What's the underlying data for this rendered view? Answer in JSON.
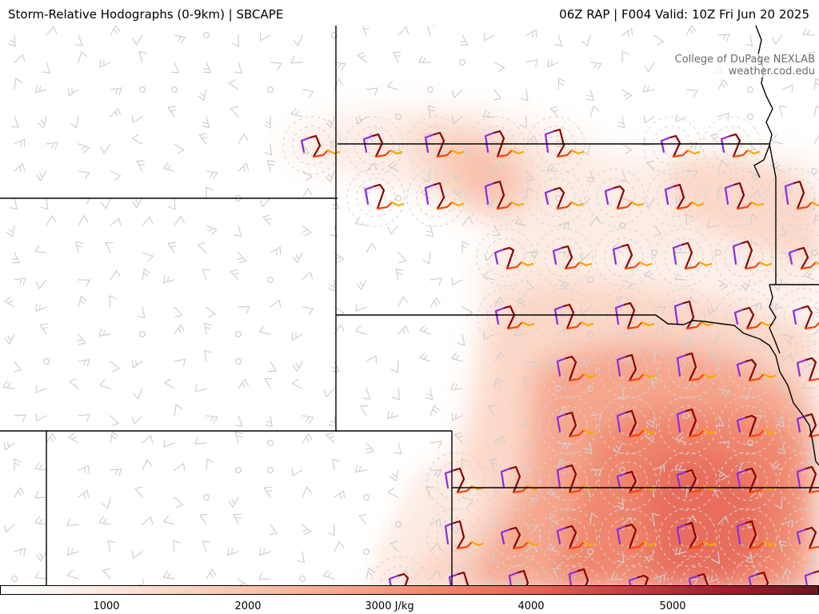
{
  "header": {
    "title": "Storm-Relative Hodographs (0-9km) | SBCAPE",
    "valid": "06Z RAP | F004 Valid: 10Z Fri Jun 20 2025"
  },
  "credit": {
    "line1": "College of DuPage NEXLAB",
    "line2": "weather.cod.edu"
  },
  "colorbar": {
    "unit": "J/kg",
    "min": 0,
    "max": 6000,
    "tick_labels": [
      "1000",
      "2000",
      "3000 J/kg",
      "4000",
      "5000"
    ],
    "colors": [
      "#ffffff",
      "#fdebe3",
      "#fbd5c4",
      "#f8bca5",
      "#f4a187",
      "#ee8067",
      "#e35f52",
      "#c7383f",
      "#9c1d2a",
      "#6a1820"
    ]
  },
  "map": {
    "background": "#ffffff",
    "borders": "#000000",
    "barb_color": "#cfcfcf",
    "hodograph_colors": [
      "#8a2be2",
      "#8b0000",
      "#ff4500",
      "#ffa500"
    ]
  }
}
